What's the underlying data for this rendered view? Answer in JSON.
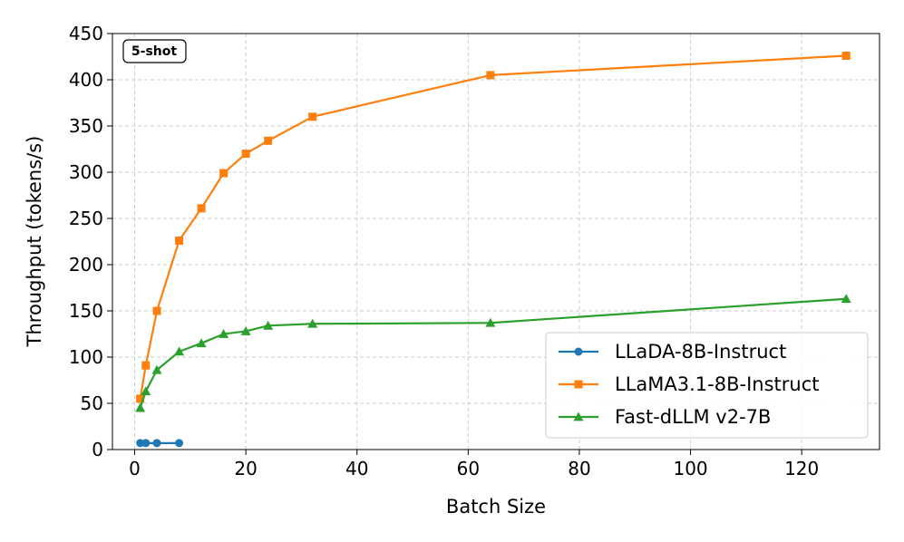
{
  "chart_data": {
    "type": "line",
    "title": "",
    "badge": "5-shot",
    "xlabel": "Batch Size",
    "ylabel": "Throughput (tokens/s)",
    "xlim": [
      -4,
      134
    ],
    "ylim": [
      0,
      450
    ],
    "xticks": [
      0,
      20,
      40,
      60,
      80,
      100,
      120
    ],
    "yticks": [
      0,
      50,
      100,
      150,
      200,
      250,
      300,
      350,
      400,
      450
    ],
    "grid": true,
    "legend_position": "bottom-right",
    "series": [
      {
        "name": "LLaDA-8B-Instruct",
        "color": "#1f77b4",
        "marker": "circle",
        "x": [
          1,
          2,
          4,
          8
        ],
        "y": [
          7,
          7,
          7,
          7
        ]
      },
      {
        "name": "LLaMA3.1-8B-Instruct",
        "color": "#ff7f0e",
        "marker": "square",
        "x": [
          1,
          2,
          4,
          8,
          12,
          16,
          20,
          24,
          32,
          64,
          128
        ],
        "y": [
          55,
          91,
          150,
          226,
          261,
          299,
          320,
          334,
          360,
          405,
          426
        ]
      },
      {
        "name": "Fast-dLLM v2-7B",
        "color": "#2ca02c",
        "marker": "triangle",
        "x": [
          1,
          2,
          4,
          8,
          12,
          16,
          20,
          24,
          32,
          64,
          128
        ],
        "y": [
          45,
          63,
          86,
          106,
          115,
          125,
          128,
          134,
          136,
          137,
          163
        ]
      }
    ]
  }
}
